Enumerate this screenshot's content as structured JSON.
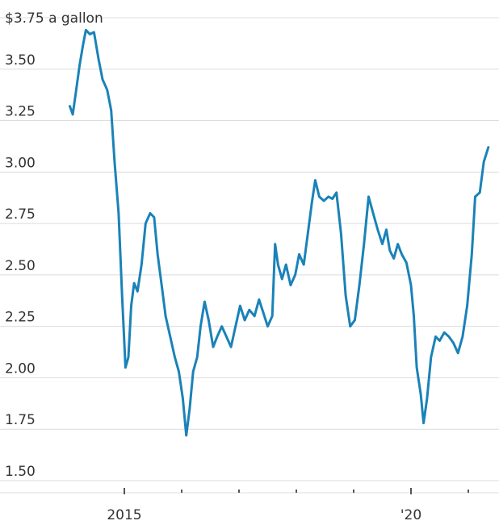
{
  "chart_data": {
    "type": "line",
    "title": "",
    "xlabel": "",
    "ylabel": "",
    "unit_label": "$3.75 a gallon",
    "y_ticks": [
      "3.50",
      "3.25",
      "3.00",
      "2.75",
      "2.50",
      "2.25",
      "2.00",
      "1.75",
      "1.50"
    ],
    "y_tick_values": [
      3.5,
      3.25,
      3.0,
      2.75,
      2.5,
      2.25,
      2.0,
      1.75,
      1.5
    ],
    "x_labels": [
      {
        "label": "2015",
        "x": 2015.0
      },
      {
        "label": "'20",
        "x": 2020.0
      }
    ],
    "x_minor_ticks": [
      2016,
      2017,
      2018,
      2019,
      2021
    ],
    "ylim": [
      1.5,
      3.75
    ],
    "xlim": [
      2013.95,
      2021.4
    ],
    "grid": true,
    "series": [
      {
        "color": "#1a82b8",
        "points": [
          [
            2014.05,
            3.32
          ],
          [
            2014.1,
            3.28
          ],
          [
            2014.16,
            3.4
          ],
          [
            2014.22,
            3.52
          ],
          [
            2014.28,
            3.62
          ],
          [
            2014.33,
            3.69
          ],
          [
            2014.4,
            3.67
          ],
          [
            2014.47,
            3.68
          ],
          [
            2014.55,
            3.55
          ],
          [
            2014.62,
            3.45
          ],
          [
            2014.7,
            3.4
          ],
          [
            2014.77,
            3.3
          ],
          [
            2014.83,
            3.05
          ],
          [
            2014.9,
            2.8
          ],
          [
            2014.96,
            2.4
          ],
          [
            2015.02,
            2.05
          ],
          [
            2015.07,
            2.1
          ],
          [
            2015.12,
            2.35
          ],
          [
            2015.17,
            2.46
          ],
          [
            2015.23,
            2.42
          ],
          [
            2015.3,
            2.55
          ],
          [
            2015.37,
            2.75
          ],
          [
            2015.45,
            2.8
          ],
          [
            2015.52,
            2.78
          ],
          [
            2015.58,
            2.6
          ],
          [
            2015.65,
            2.45
          ],
          [
            2015.72,
            2.3
          ],
          [
            2015.8,
            2.2
          ],
          [
            2015.88,
            2.1
          ],
          [
            2015.95,
            2.03
          ],
          [
            2016.02,
            1.9
          ],
          [
            2016.08,
            1.72
          ],
          [
            2016.14,
            1.85
          ],
          [
            2016.2,
            2.03
          ],
          [
            2016.27,
            2.1
          ],
          [
            2016.33,
            2.25
          ],
          [
            2016.4,
            2.37
          ],
          [
            2016.47,
            2.28
          ],
          [
            2016.55,
            2.15
          ],
          [
            2016.62,
            2.2
          ],
          [
            2016.7,
            2.25
          ],
          [
            2016.78,
            2.2
          ],
          [
            2016.86,
            2.15
          ],
          [
            2016.94,
            2.25
          ],
          [
            2017.02,
            2.35
          ],
          [
            2017.1,
            2.28
          ],
          [
            2017.18,
            2.33
          ],
          [
            2017.27,
            2.3
          ],
          [
            2017.35,
            2.38
          ],
          [
            2017.42,
            2.32
          ],
          [
            2017.5,
            2.25
          ],
          [
            2017.58,
            2.3
          ],
          [
            2017.63,
            2.65
          ],
          [
            2017.68,
            2.55
          ],
          [
            2017.75,
            2.48
          ],
          [
            2017.82,
            2.55
          ],
          [
            2017.9,
            2.45
          ],
          [
            2017.98,
            2.5
          ],
          [
            2018.05,
            2.6
          ],
          [
            2018.13,
            2.55
          ],
          [
            2018.2,
            2.7
          ],
          [
            2018.27,
            2.85
          ],
          [
            2018.33,
            2.96
          ],
          [
            2018.4,
            2.88
          ],
          [
            2018.48,
            2.86
          ],
          [
            2018.56,
            2.88
          ],
          [
            2018.63,
            2.87
          ],
          [
            2018.7,
            2.9
          ],
          [
            2018.78,
            2.7
          ],
          [
            2018.86,
            2.4
          ],
          [
            2018.94,
            2.25
          ],
          [
            2019.02,
            2.28
          ],
          [
            2019.1,
            2.45
          ],
          [
            2019.18,
            2.65
          ],
          [
            2019.26,
            2.88
          ],
          [
            2019.34,
            2.8
          ],
          [
            2019.42,
            2.72
          ],
          [
            2019.5,
            2.65
          ],
          [
            2019.57,
            2.72
          ],
          [
            2019.63,
            2.62
          ],
          [
            2019.7,
            2.58
          ],
          [
            2019.77,
            2.65
          ],
          [
            2019.84,
            2.6
          ],
          [
            2019.92,
            2.56
          ],
          [
            2020.0,
            2.45
          ],
          [
            2020.05,
            2.3
          ],
          [
            2020.1,
            2.05
          ],
          [
            2020.17,
            1.92
          ],
          [
            2020.22,
            1.78
          ],
          [
            2020.28,
            1.9
          ],
          [
            2020.35,
            2.1
          ],
          [
            2020.43,
            2.2
          ],
          [
            2020.5,
            2.18
          ],
          [
            2020.58,
            2.22
          ],
          [
            2020.66,
            2.2
          ],
          [
            2020.74,
            2.17
          ],
          [
            2020.82,
            2.12
          ],
          [
            2020.9,
            2.2
          ],
          [
            2020.98,
            2.35
          ],
          [
            2021.06,
            2.6
          ],
          [
            2021.12,
            2.88
          ],
          [
            2021.2,
            2.9
          ],
          [
            2021.27,
            3.05
          ],
          [
            2021.35,
            3.12
          ]
        ]
      }
    ]
  }
}
